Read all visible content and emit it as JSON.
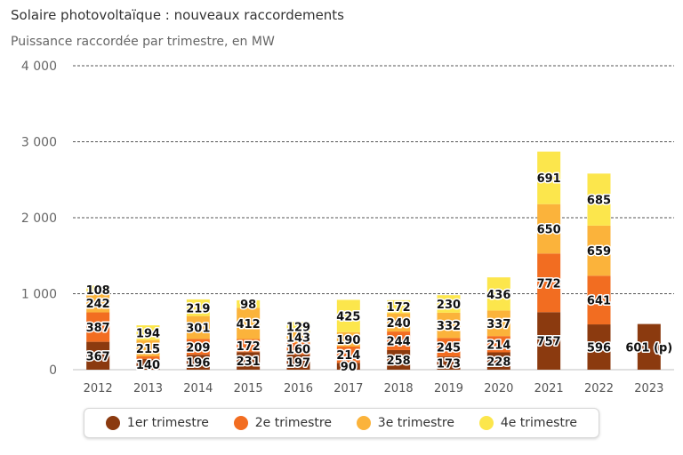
{
  "title": "Solaire photovoltaïque : nouveaux raccordements",
  "subtitle": "Puissance raccordée par trimestre, en MW",
  "chart_data": {
    "type": "bar",
    "stacked": true,
    "categories": [
      "2012",
      "2013",
      "2014",
      "2015",
      "2016",
      "2017",
      "2018",
      "2019",
      "2020",
      "2021",
      "2022",
      "2023"
    ],
    "ylim": [
      0,
      4000
    ],
    "yticks": [
      0,
      1000,
      2000,
      3000,
      4000
    ],
    "ytick_labels": [
      "0",
      "1 000",
      "2 000",
      "3 000",
      "4 000"
    ],
    "grid": true,
    "legend_position": "bottom",
    "series": [
      {
        "name": "1er trimestre",
        "color": "#8b3a0f",
        "values": [
          367,
          140,
          196,
          231,
          197,
          90,
          258,
          173,
          228,
          757,
          596,
          601
        ],
        "labels": [
          "367",
          "140",
          "196",
          "231",
          "197",
          "90",
          "258",
          "173",
          "228",
          "757",
          "596",
          "601 (p)"
        ]
      },
      {
        "name": "2e trimestre",
        "color": "#f26d21",
        "values": [
          387,
          35,
          209,
          172,
          160,
          214,
          244,
          245,
          214,
          772,
          641,
          null
        ],
        "labels": [
          "387",
          "",
          "209",
          "172",
          "160",
          "214",
          "244",
          "245",
          "214",
          "772",
          "641",
          ""
        ]
      },
      {
        "name": "3e trimestre",
        "color": "#fbb33b",
        "values": [
          242,
          215,
          301,
          412,
          143,
          190,
          240,
          332,
          337,
          650,
          659,
          null
        ],
        "labels": [
          "242",
          "215",
          "301",
          "412",
          "143",
          "190",
          "240",
          "332",
          "337",
          "650",
          "659",
          ""
        ]
      },
      {
        "name": "4e trimestre",
        "color": "#fce64c",
        "values": [
          108,
          194,
          219,
          98,
          129,
          425,
          172,
          230,
          436,
          691,
          685,
          null
        ],
        "labels": [
          "108",
          "194",
          "219",
          "98",
          "129",
          "425",
          "172",
          "230",
          "436",
          "691",
          "685",
          ""
        ]
      }
    ]
  }
}
